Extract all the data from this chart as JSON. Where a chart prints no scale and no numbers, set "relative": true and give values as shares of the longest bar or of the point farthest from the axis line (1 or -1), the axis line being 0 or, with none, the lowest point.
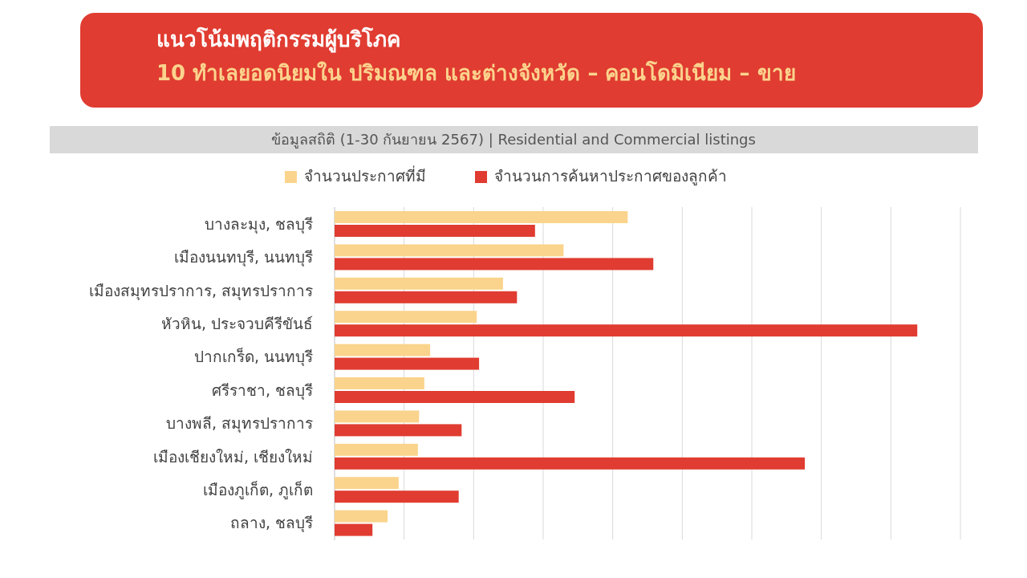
{
  "chart_data": {
    "type": "bar",
    "orientation": "horizontal",
    "relative": true,
    "title": "แนวโน้มพฤติกรรมผู้บริโภค",
    "subtitle": "10 ทำเลยอดนิยมใน ปริมณฑล และต่างจังหวัด – คอนโดมิเนียม – ขาย",
    "annotations": [
      "ข้อมูลสถิติ (1-30 กันยายน 2567) | Residential and Commercial listings"
    ],
    "categories": [
      "บางละมุง, ชลบุรี",
      "เมืองนนทบุรี, นนทบุรี",
      "เมืองสมุทรปราการ, สมุทรปราการ",
      "หัวหิน, ประจวบคีรีขันธ์",
      "ปากเกร็ด, นนทบุรี",
      "ศรีราชา, ชลบุรี",
      "บางพลี, สมุทรปราการ",
      "เมืองเชียงใหม่, เชียงใหม่",
      "เมืองภูเก็ต, ภูเก็ต",
      "ถลาง, ชลบุรี"
    ],
    "series": [
      {
        "name": "จำนวนประกาศที่มี",
        "color": "#fad48c",
        "values": [
          0.503,
          0.393,
          0.289,
          0.244,
          0.164,
          0.154,
          0.145,
          0.143,
          0.11,
          0.091
        ]
      },
      {
        "name": "จำนวนการค้นหาประกาศของลูกค้า",
        "color": "#e03c31",
        "values": [
          0.344,
          0.547,
          0.313,
          1.0,
          0.248,
          0.412,
          0.218,
          0.807,
          0.213,
          0.065
        ]
      }
    ],
    "grid": "x",
    "legend": "top"
  }
}
